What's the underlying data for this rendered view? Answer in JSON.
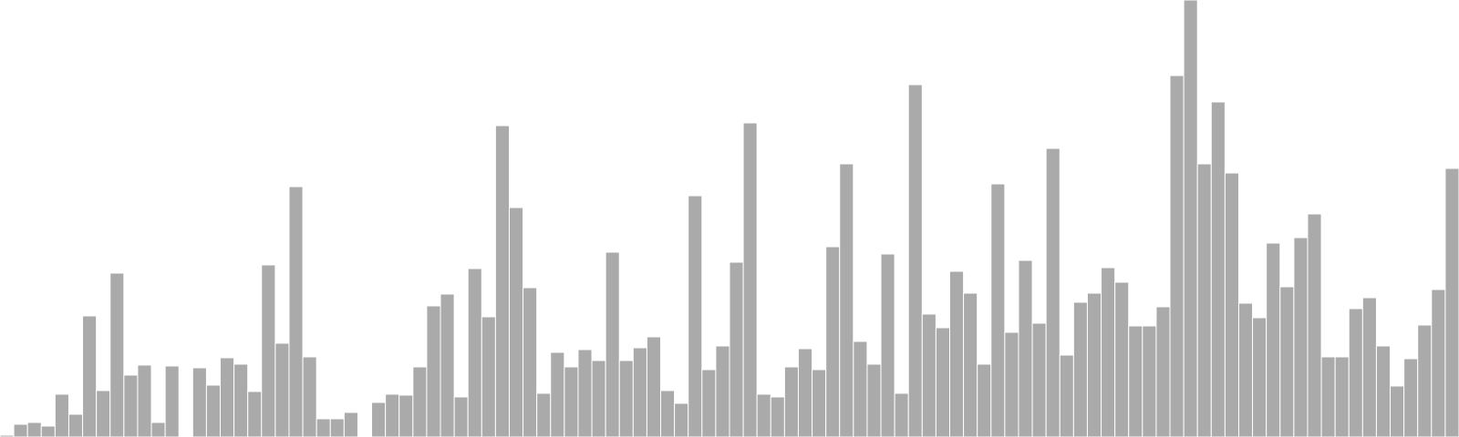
{
  "chart_data": {
    "type": "bar",
    "title": "",
    "xlabel": "",
    "ylabel": "",
    "ylim": [
      0,
      480
    ],
    "grid": false,
    "legend": "none",
    "bar_color": "#aaaaaa",
    "values": [
      2,
      14,
      16,
      12,
      47,
      25,
      133,
      51,
      180,
      68,
      79,
      16,
      78,
      0,
      76,
      57,
      87,
      80,
      50,
      189,
      103,
      275,
      88,
      20,
      20,
      27,
      0,
      38,
      47,
      46,
      77,
      144,
      157,
      44,
      185,
      132,
      342,
      252,
      164,
      48,
      93,
      77,
      96,
      84,
      203,
      84,
      98,
      110,
      51,
      37,
      265,
      74,
      100,
      192,
      345,
      47,
      44,
      77,
      97,
      74,
      209,
      300,
      105,
      80,
      201,
      48,
      387,
      135,
      120,
      182,
      158,
      80,
      278,
      115,
      194,
      125,
      317,
      90,
      148,
      158,
      186,
      170,
      122,
      122,
      143,
      397,
      480,
      300,
      368,
      290,
      147,
      131,
      213,
      165,
      219,
      245,
      88,
      88,
      141,
      153,
      100,
      56,
      86,
      123,
      162,
      295
    ]
  }
}
